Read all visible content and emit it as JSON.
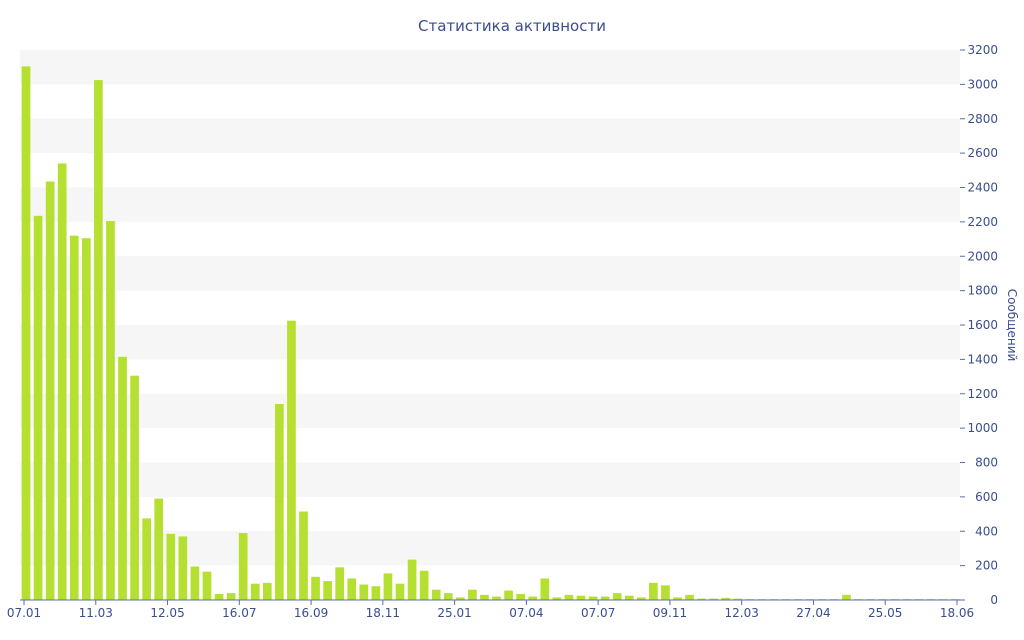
{
  "chart_data": {
    "type": "bar",
    "title": "Статистика активности",
    "ylabel": "Сообщений",
    "xlabel": "",
    "ylim": [
      0,
      3200
    ],
    "ytick_values": [
      0,
      200,
      400,
      600,
      800,
      1000,
      1200,
      1400,
      1600,
      1800,
      2000,
      2200,
      2400,
      2600,
      2800,
      3000,
      3200
    ],
    "x_tick_labels": [
      "07.01",
      "11.03",
      "12.05",
      "16.07",
      "16.09",
      "18.11",
      "25.01",
      "07.04",
      "07.07",
      "09.11",
      "12.03",
      "27.04",
      "25.05",
      "18.06"
    ],
    "grid": "horizontal alternating bands",
    "y_axis_side": "right",
    "bar_color": "#b5e031",
    "values": [
      3105,
      2235,
      2435,
      2540,
      2120,
      2105,
      3025,
      2205,
      1415,
      1305,
      475,
      590,
      385,
      370,
      195,
      165,
      35,
      40,
      390,
      95,
      100,
      1140,
      1625,
      515,
      135,
      110,
      190,
      125,
      90,
      80,
      155,
      95,
      235,
      170,
      60,
      40,
      15,
      60,
      30,
      20,
      55,
      35,
      20,
      125,
      15,
      30,
      25,
      20,
      20,
      40,
      25,
      15,
      100,
      85,
      15,
      30,
      8,
      8,
      12,
      8,
      5,
      5,
      5,
      5,
      5,
      5,
      5,
      5,
      30,
      5,
      5,
      5,
      5,
      5,
      5,
      5,
      5,
      5
    ]
  }
}
